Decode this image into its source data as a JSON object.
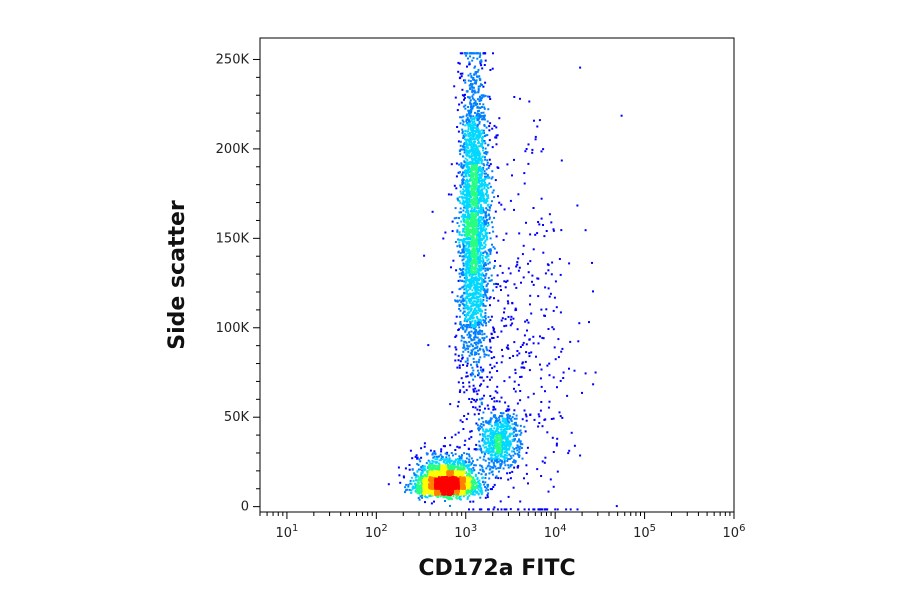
{
  "chart_data": {
    "type": "scatter",
    "title": "",
    "xlabel": "CD172a FITC",
    "ylabel": "Side scatter",
    "x_scale": "log",
    "xlim": [
      5,
      1000000
    ],
    "ylim": [
      -3000,
      262000
    ],
    "x_ticks": [
      {
        "value": 10,
        "base": "10",
        "exp": "1"
      },
      {
        "value": 100,
        "base": "10",
        "exp": "2"
      },
      {
        "value": 1000,
        "base": "10",
        "exp": "3"
      },
      {
        "value": 10000,
        "base": "10",
        "exp": "4"
      },
      {
        "value": 100000,
        "base": "10",
        "exp": "5"
      },
      {
        "value": 1000000,
        "base": "10",
        "exp": "6"
      }
    ],
    "y_ticks": [
      {
        "value": 0,
        "label": "0"
      },
      {
        "value": 50000,
        "label": "50K"
      },
      {
        "value": 100000,
        "label": "100K"
      },
      {
        "value": 150000,
        "label": "150K"
      },
      {
        "value": 200000,
        "label": "200K"
      },
      {
        "value": 250000,
        "label": "250K"
      }
    ],
    "grid": false,
    "legend": "none",
    "density_colors": [
      "#0000ff",
      "#0080ff",
      "#00d8ff",
      "#28ff80",
      "#ffff00",
      "#ff8000",
      "#ff0000"
    ],
    "populations": [
      {
        "x_center": 600,
        "x_sd_decades": 0.17,
        "y_center": 13000,
        "y_sd": 5500,
        "events": 2600,
        "peak_density": "high"
      },
      {
        "x_center": 1200,
        "x_sd_decades": 0.085,
        "y_center": 160000,
        "y_sd": 42000,
        "events": 2800,
        "peak_density": "medium"
      },
      {
        "x_center": 2300,
        "x_sd_decades": 0.11,
        "y_center": 38000,
        "y_sd": 8000,
        "events": 650,
        "peak_density": "medium"
      },
      {
        "x_center": 4000,
        "x_sd_decades": 0.35,
        "y_center": 90000,
        "y_sd": 60000,
        "events": 450,
        "peak_density": "low"
      }
    ]
  }
}
